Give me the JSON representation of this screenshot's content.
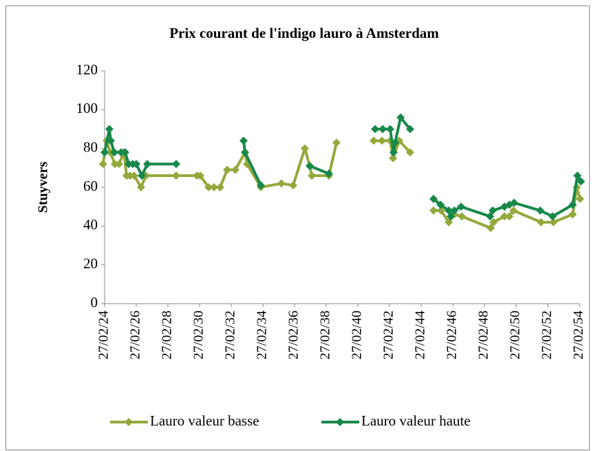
{
  "chart_data": {
    "type": "line",
    "title": "Prix courant de l'indigo lauro à Amsterdam",
    "ylabel": "Stuyvers",
    "ylim": [
      0,
      120
    ],
    "yticks": [
      0,
      20,
      40,
      60,
      80,
      100,
      120
    ],
    "xlim": [
      24,
      54
    ],
    "xticks": [
      {
        "value": 24,
        "label": "27/02/24"
      },
      {
        "value": 26,
        "label": "27/02/26"
      },
      {
        "value": 28,
        "label": "27/02/28"
      },
      {
        "value": 30,
        "label": "27/02/30"
      },
      {
        "value": 32,
        "label": "27/02/32"
      },
      {
        "value": 34,
        "label": "27/02/34"
      },
      {
        "value": 36,
        "label": "27/02/36"
      },
      {
        "value": 38,
        "label": "27/02/38"
      },
      {
        "value": 40,
        "label": "27/02/40"
      },
      {
        "value": 42,
        "label": "27/02/42"
      },
      {
        "value": 44,
        "label": "27/02/44"
      },
      {
        "value": 46,
        "label": "27/02/46"
      },
      {
        "value": 48,
        "label": "27/02/48"
      },
      {
        "value": 50,
        "label": "27/02/50"
      },
      {
        "value": 52,
        "label": "27/02/52"
      },
      {
        "value": 54,
        "label": "27/02/54"
      }
    ],
    "legend": "bottom",
    "series": [
      {
        "name": "Lauro valeur basse",
        "color": "#93a93c",
        "x": [
          23.9,
          24.13,
          24.35,
          24.65,
          24.91,
          25.22,
          25.39,
          25.61,
          25.87,
          26.3,
          26.61,
          28.52,
          29.83,
          30.04,
          30.57,
          30.91,
          31.3,
          31.74,
          32.26,
          32.87,
          33.0,
          33.87,
          35.17,
          35.91,
          36.65,
          36.96,
          37.09,
          38.17,
          38.65,
          null,
          41.0,
          41.52,
          42.04,
          42.22,
          42.61,
          43.3,
          null,
          44.78,
          45.26,
          45.74,
          46.09,
          46.57,
          48.39,
          48.57,
          49.26,
          49.57,
          49.83,
          51.57,
          52.35,
          53.57,
          53.83,
          54.04
        ],
        "values": [
          72,
          84,
          78,
          72,
          72,
          78,
          66,
          66,
          66,
          60,
          66,
          66,
          66,
          66,
          60,
          60,
          60,
          69,
          69,
          78,
          72,
          60,
          62,
          61,
          80,
          71,
          66,
          66,
          83,
          null,
          84,
          84,
          84,
          75,
          84,
          78,
          null,
          48,
          48,
          42,
          46,
          45,
          39,
          42,
          45,
          45,
          48,
          42,
          42,
          46,
          60,
          54
        ]
      },
      {
        "name": "Lauro valeur haute",
        "color": "#17884a",
        "x": [
          24.0,
          24.3,
          24.39,
          24.61,
          25.04,
          25.3,
          25.52,
          25.78,
          26.0,
          26.35,
          26.7,
          28.52,
          null,
          32.78,
          32.87,
          33.87,
          null,
          36.96,
          38.17,
          null,
          41.09,
          41.57,
          42.04,
          42.26,
          42.35,
          42.7,
          43.3,
          null,
          44.78,
          45.22,
          45.74,
          45.87,
          46.09,
          46.52,
          48.35,
          48.52,
          49.26,
          49.57,
          49.87,
          51.52,
          52.3,
          53.57,
          53.87,
          54.09
        ],
        "values": [
          78,
          90,
          84,
          78,
          78,
          78,
          72,
          72,
          72,
          66,
          72,
          72,
          null,
          84,
          78,
          61,
          null,
          71,
          67,
          null,
          90,
          90,
          90,
          78,
          83,
          96,
          90,
          null,
          54,
          51,
          48,
          45,
          48,
          50,
          45,
          48,
          50,
          51,
          52,
          48,
          45,
          51,
          66,
          63
        ]
      }
    ]
  }
}
